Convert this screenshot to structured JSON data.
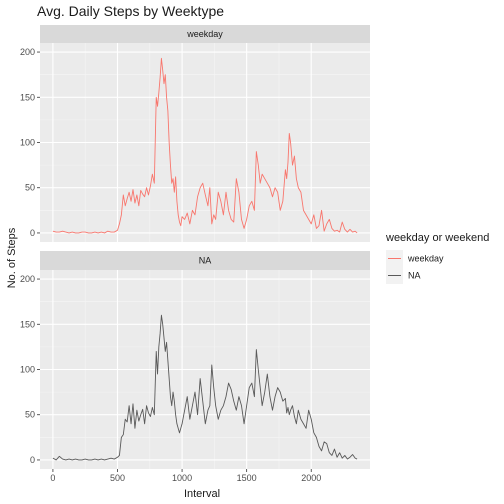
{
  "chart_data": {
    "type": "line",
    "title": "Avg. Daily Steps by Weektype",
    "xlabel": "Interval",
    "ylabel": "No. of Steps",
    "xlim": [
      -100,
      2455
    ],
    "ylim": [
      -10,
      210
    ],
    "x_ticks": [
      0,
      500,
      1000,
      1500,
      2000
    ],
    "y_ticks": [
      0,
      50,
      100,
      150,
      200
    ],
    "grid": true,
    "legend": {
      "title": "weekday or weekend",
      "position": "right"
    },
    "series": [
      {
        "name": "weekday",
        "color": "#F8766D",
        "points": [
          [
            0,
            2
          ],
          [
            25,
            1
          ],
          [
            50,
            1
          ],
          [
            75,
            2
          ],
          [
            100,
            1
          ],
          [
            125,
            0
          ],
          [
            150,
            1
          ],
          [
            175,
            0
          ],
          [
            200,
            0
          ],
          [
            225,
            1
          ],
          [
            250,
            1
          ],
          [
            275,
            0
          ],
          [
            300,
            0
          ],
          [
            325,
            1
          ],
          [
            350,
            0
          ],
          [
            375,
            1
          ],
          [
            400,
            0
          ],
          [
            425,
            2
          ],
          [
            450,
            1
          ],
          [
            475,
            1
          ],
          [
            500,
            3
          ],
          [
            515,
            10
          ],
          [
            530,
            20
          ],
          [
            545,
            42
          ],
          [
            560,
            30
          ],
          [
            575,
            38
          ],
          [
            590,
            45
          ],
          [
            605,
            35
          ],
          [
            620,
            48
          ],
          [
            635,
            33
          ],
          [
            650,
            42
          ],
          [
            665,
            30
          ],
          [
            680,
            47
          ],
          [
            695,
            43
          ],
          [
            710,
            40
          ],
          [
            725,
            50
          ],
          [
            740,
            42
          ],
          [
            755,
            52
          ],
          [
            770,
            65
          ],
          [
            785,
            55
          ],
          [
            800,
            150
          ],
          [
            810,
            140
          ],
          [
            820,
            155
          ],
          [
            830,
            172
          ],
          [
            840,
            193
          ],
          [
            850,
            180
          ],
          [
            860,
            165
          ],
          [
            870,
            175
          ],
          [
            880,
            150
          ],
          [
            890,
            135
          ],
          [
            900,
            100
          ],
          [
            910,
            75
          ],
          [
            920,
            55
          ],
          [
            930,
            60
          ],
          [
            940,
            45
          ],
          [
            950,
            62
          ],
          [
            960,
            35
          ],
          [
            970,
            20
          ],
          [
            980,
            12
          ],
          [
            990,
            8
          ],
          [
            1000,
            18
          ],
          [
            1020,
            15
          ],
          [
            1040,
            22
          ],
          [
            1060,
            10
          ],
          [
            1080,
            25
          ],
          [
            1100,
            20
          ],
          [
            1120,
            40
          ],
          [
            1140,
            50
          ],
          [
            1160,
            55
          ],
          [
            1180,
            42
          ],
          [
            1200,
            30
          ],
          [
            1215,
            50
          ],
          [
            1230,
            10
          ],
          [
            1245,
            20
          ],
          [
            1260,
            15
          ],
          [
            1280,
            45
          ],
          [
            1300,
            35
          ],
          [
            1320,
            20
          ],
          [
            1340,
            45
          ],
          [
            1360,
            25
          ],
          [
            1380,
            15
          ],
          [
            1400,
            12
          ],
          [
            1420,
            60
          ],
          [
            1440,
            45
          ],
          [
            1460,
            15
          ],
          [
            1480,
            5
          ],
          [
            1500,
            15
          ],
          [
            1520,
            30
          ],
          [
            1540,
            35
          ],
          [
            1560,
            25
          ],
          [
            1575,
            90
          ],
          [
            1590,
            75
          ],
          [
            1605,
            55
          ],
          [
            1620,
            65
          ],
          [
            1640,
            60
          ],
          [
            1660,
            55
          ],
          [
            1680,
            50
          ],
          [
            1700,
            40
          ],
          [
            1720,
            50
          ],
          [
            1740,
            45
          ],
          [
            1760,
            25
          ],
          [
            1780,
            35
          ],
          [
            1800,
            70
          ],
          [
            1810,
            60
          ],
          [
            1820,
            78
          ],
          [
            1830,
            110
          ],
          [
            1840,
            100
          ],
          [
            1855,
            75
          ],
          [
            1870,
            85
          ],
          [
            1885,
            60
          ],
          [
            1900,
            50
          ],
          [
            1920,
            45
          ],
          [
            1940,
            25
          ],
          [
            1960,
            20
          ],
          [
            1980,
            15
          ],
          [
            2000,
            10
          ],
          [
            2020,
            20
          ],
          [
            2040,
            5
          ],
          [
            2060,
            8
          ],
          [
            2080,
            25
          ],
          [
            2100,
            2
          ],
          [
            2120,
            10
          ],
          [
            2140,
            15
          ],
          [
            2160,
            5
          ],
          [
            2180,
            2
          ],
          [
            2200,
            3
          ],
          [
            2220,
            1
          ],
          [
            2240,
            12
          ],
          [
            2260,
            4
          ],
          [
            2280,
            1
          ],
          [
            2300,
            4
          ],
          [
            2320,
            1
          ],
          [
            2340,
            2
          ],
          [
            2355,
            0
          ]
        ]
      },
      {
        "name": "NA",
        "color": "#595959",
        "points": [
          [
            0,
            2
          ],
          [
            25,
            0
          ],
          [
            50,
            4
          ],
          [
            75,
            1
          ],
          [
            100,
            0
          ],
          [
            125,
            1
          ],
          [
            150,
            0
          ],
          [
            175,
            1
          ],
          [
            200,
            0
          ],
          [
            225,
            0
          ],
          [
            250,
            1
          ],
          [
            275,
            0
          ],
          [
            300,
            0
          ],
          [
            325,
            1
          ],
          [
            350,
            0
          ],
          [
            375,
            1
          ],
          [
            400,
            0
          ],
          [
            425,
            1
          ],
          [
            450,
            2
          ],
          [
            475,
            1
          ],
          [
            500,
            3
          ],
          [
            515,
            5
          ],
          [
            530,
            25
          ],
          [
            545,
            28
          ],
          [
            560,
            45
          ],
          [
            575,
            42
          ],
          [
            590,
            60
          ],
          [
            605,
            40
          ],
          [
            620,
            62
          ],
          [
            635,
            35
          ],
          [
            650,
            55
          ],
          [
            665,
            43
          ],
          [
            680,
            50
          ],
          [
            695,
            56
          ],
          [
            710,
            40
          ],
          [
            725,
            60
          ],
          [
            740,
            52
          ],
          [
            755,
            48
          ],
          [
            770,
            58
          ],
          [
            785,
            50
          ],
          [
            800,
            120
          ],
          [
            810,
            95
          ],
          [
            820,
            125
          ],
          [
            830,
            140
          ],
          [
            840,
            160
          ],
          [
            850,
            150
          ],
          [
            860,
            135
          ],
          [
            870,
            120
          ],
          [
            880,
            130
          ],
          [
            890,
            110
          ],
          [
            900,
            90
          ],
          [
            910,
            70
          ],
          [
            920,
            60
          ],
          [
            930,
            75
          ],
          [
            940,
            65
          ],
          [
            950,
            50
          ],
          [
            960,
            40
          ],
          [
            980,
            30
          ],
          [
            1000,
            40
          ],
          [
            1020,
            55
          ],
          [
            1040,
            70
          ],
          [
            1060,
            45
          ],
          [
            1080,
            60
          ],
          [
            1100,
            75
          ],
          [
            1120,
            50
          ],
          [
            1140,
            90
          ],
          [
            1160,
            65
          ],
          [
            1180,
            40
          ],
          [
            1200,
            55
          ],
          [
            1215,
            60
          ],
          [
            1230,
            105
          ],
          [
            1245,
            80
          ],
          [
            1260,
            60
          ],
          [
            1280,
            45
          ],
          [
            1300,
            55
          ],
          [
            1320,
            60
          ],
          [
            1340,
            70
          ],
          [
            1360,
            85
          ],
          [
            1380,
            78
          ],
          [
            1400,
            65
          ],
          [
            1420,
            55
          ],
          [
            1440,
            70
          ],
          [
            1460,
            60
          ],
          [
            1480,
            40
          ],
          [
            1500,
            60
          ],
          [
            1520,
            80
          ],
          [
            1540,
            85
          ],
          [
            1560,
            70
          ],
          [
            1575,
            122
          ],
          [
            1590,
            100
          ],
          [
            1605,
            80
          ],
          [
            1620,
            60
          ],
          [
            1640,
            75
          ],
          [
            1660,
            95
          ],
          [
            1680,
            70
          ],
          [
            1700,
            55
          ],
          [
            1720,
            70
          ],
          [
            1740,
            80
          ],
          [
            1760,
            75
          ],
          [
            1780,
            65
          ],
          [
            1800,
            68
          ],
          [
            1810,
            52
          ],
          [
            1820,
            58
          ],
          [
            1830,
            50
          ],
          [
            1840,
            55
          ],
          [
            1855,
            60
          ],
          [
            1870,
            48
          ],
          [
            1885,
            40
          ],
          [
            1900,
            55
          ],
          [
            1920,
            45
          ],
          [
            1940,
            40
          ],
          [
            1960,
            35
          ],
          [
            1980,
            55
          ],
          [
            2000,
            45
          ],
          [
            2020,
            30
          ],
          [
            2040,
            25
          ],
          [
            2060,
            15
          ],
          [
            2080,
            10
          ],
          [
            2100,
            20
          ],
          [
            2120,
            18
          ],
          [
            2140,
            8
          ],
          [
            2160,
            5
          ],
          [
            2180,
            12
          ],
          [
            2200,
            3
          ],
          [
            2220,
            8
          ],
          [
            2240,
            2
          ],
          [
            2260,
            5
          ],
          [
            2280,
            1
          ],
          [
            2300,
            3
          ],
          [
            2320,
            6
          ],
          [
            2340,
            2
          ],
          [
            2355,
            1
          ]
        ]
      }
    ]
  }
}
